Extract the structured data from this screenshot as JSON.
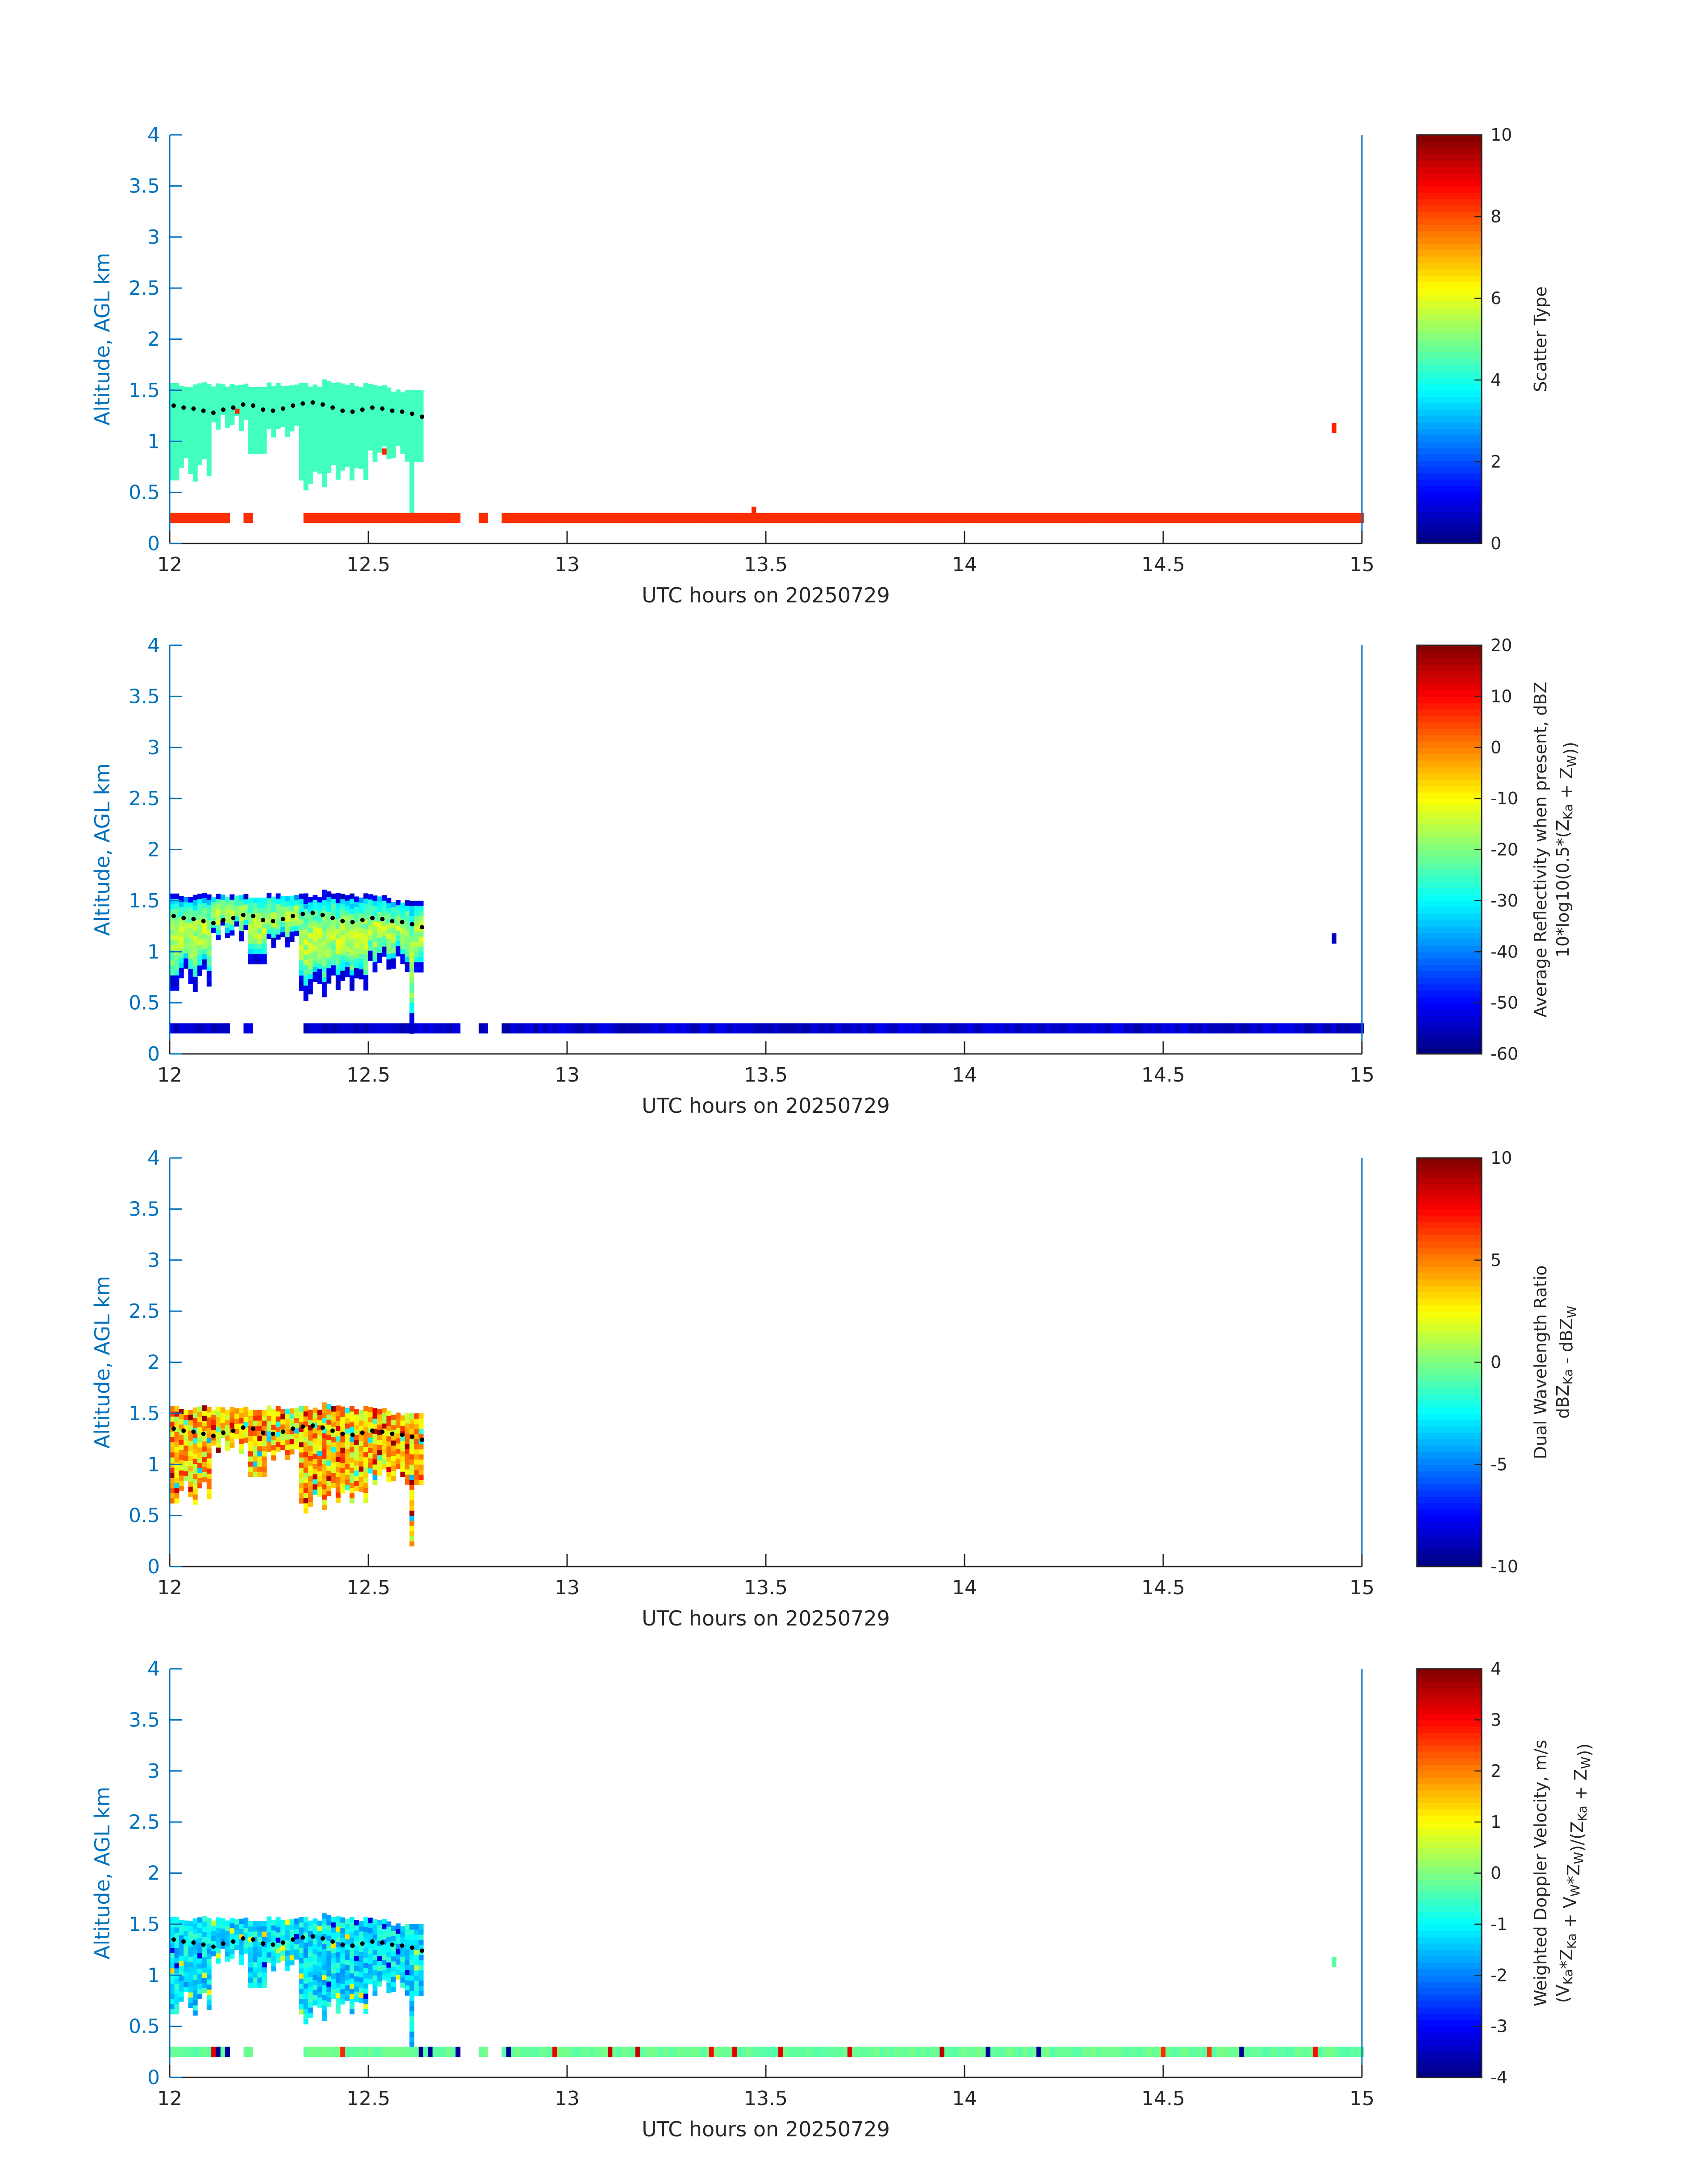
{
  "figure": {
    "colormap": "jet",
    "axis_color": "#0072bd",
    "text_color": "#262626"
  },
  "chart_data": [
    {
      "type": "heatmap",
      "xlabel": "UTC hours on 20250729",
      "ylabel": "Altitude, AGL km",
      "xlim": [
        12,
        15
      ],
      "ylim": [
        0,
        4
      ],
      "xticks": [
        "12",
        "12.5",
        "13",
        "13.5",
        "14",
        "14.5",
        "15"
      ],
      "yticks": [
        "0",
        "0.5",
        "1",
        "1.5",
        "2",
        "2.5",
        "3",
        "3.5",
        "4"
      ],
      "colorbar": {
        "label_lines": [
          "Scatter Type"
        ],
        "range": [
          0,
          10
        ],
        "ticks": [
          "0",
          "2",
          "4",
          "6",
          "8",
          "10"
        ]
      },
      "field": "scatter",
      "cloud_top_km": 1.55,
      "cloud_value": 4.4,
      "ground_value": 8.3,
      "dots_km": [
        1.35,
        1.33,
        1.32,
        1.3,
        1.28,
        1.31,
        1.33,
        1.36,
        1.35,
        1.31,
        1.3,
        1.32,
        1.35,
        1.37,
        1.38,
        1.36,
        1.33,
        1.3,
        1.29,
        1.31,
        1.33,
        1.32,
        1.3,
        1.29,
        1.27,
        1.24
      ],
      "extras": [
        {
          "x": 12.17,
          "y0": 1.27,
          "y1": 1.32,
          "v": 8.4
        },
        {
          "x": 12.54,
          "y0": 0.87,
          "y1": 0.93,
          "v": 8.4
        },
        {
          "x": 13.47,
          "y0": 0.3,
          "y1": 0.36,
          "v": 8.4
        },
        {
          "x": 14.93,
          "y0": 1.08,
          "y1": 1.18,
          "v": 8.4
        }
      ]
    },
    {
      "type": "heatmap",
      "xlabel": "UTC hours on 20250729",
      "ylabel": "Altitude, AGL km",
      "xlim": [
        12,
        15
      ],
      "ylim": [
        0,
        4
      ],
      "xticks": [
        "12",
        "12.5",
        "13",
        "13.5",
        "14",
        "14.5",
        "15"
      ],
      "yticks": [
        "0",
        "0.5",
        "1",
        "1.5",
        "2",
        "2.5",
        "3",
        "3.5",
        "4"
      ],
      "colorbar": {
        "label_lines": [
          "Average Reflectivity when present, dBZ",
          "10*log10(0.5*(Z_Ka + Z_W))"
        ],
        "range": [
          -60,
          20
        ],
        "ticks": [
          "-60",
          "-50",
          "-40",
          "-30",
          "-20",
          "-10",
          "0",
          "10",
          "20"
        ]
      },
      "field": "reflectivity",
      "cloud_top_km": 1.55,
      "ground_value": -54,
      "dots_km": [
        1.35,
        1.33,
        1.32,
        1.3,
        1.28,
        1.31,
        1.33,
        1.36,
        1.35,
        1.31,
        1.3,
        1.32,
        1.35,
        1.37,
        1.38,
        1.36,
        1.33,
        1.3,
        1.29,
        1.31,
        1.33,
        1.32,
        1.3,
        1.29,
        1.27,
        1.24
      ],
      "extras": [
        {
          "x": 14.93,
          "y0": 1.08,
          "y1": 1.18,
          "v": -55
        }
      ]
    },
    {
      "type": "heatmap",
      "xlabel": "UTC hours on 20250729",
      "ylabel": "Altitude, AGL km",
      "xlim": [
        12,
        15
      ],
      "ylim": [
        0,
        4
      ],
      "xticks": [
        "12",
        "12.5",
        "13",
        "13.5",
        "14",
        "14.5",
        "15"
      ],
      "yticks": [
        "0",
        "0.5",
        "1",
        "1.5",
        "2",
        "2.5",
        "3",
        "3.5",
        "4"
      ],
      "colorbar": {
        "label_lines": [
          "Dual Wavelength Ratio",
          "dBZ_Ka - dBZ_W"
        ],
        "range": [
          -10,
          10
        ],
        "ticks": [
          "-10",
          "-5",
          "0",
          "5",
          "10"
        ]
      },
      "field": "dwr",
      "cloud_top_km": 1.55,
      "dots_km": [
        1.35,
        1.33,
        1.32,
        1.3,
        1.28,
        1.31,
        1.33,
        1.36,
        1.35,
        1.31,
        1.3,
        1.32,
        1.35,
        1.37,
        1.38,
        1.36,
        1.33,
        1.3,
        1.29,
        1.31,
        1.33,
        1.32,
        1.3,
        1.29,
        1.27,
        1.24
      ],
      "extras": []
    },
    {
      "type": "heatmap",
      "xlabel": "UTC hours on 20250729",
      "ylabel": "Altitude, AGL km",
      "xlim": [
        12,
        15
      ],
      "ylim": [
        0,
        4
      ],
      "xticks": [
        "12",
        "12.5",
        "13",
        "13.5",
        "14",
        "14.5",
        "15"
      ],
      "yticks": [
        "0",
        "0.5",
        "1",
        "1.5",
        "2",
        "2.5",
        "3",
        "3.5",
        "4"
      ],
      "colorbar": {
        "label_lines": [
          "Weighted Doppler Velocity, m/s",
          "(V_Ka*Z_Ka + V_W*Z_W)/(Z_Ka + Z_W))"
        ],
        "range": [
          -4,
          4
        ],
        "ticks": [
          "-4",
          "-3",
          "-2",
          "-1",
          "0",
          "1",
          "2",
          "3",
          "4"
        ]
      },
      "field": "velocity",
      "cloud_top_km": 1.55,
      "ground_value": -0.2,
      "dots_km": [
        1.35,
        1.33,
        1.32,
        1.3,
        1.28,
        1.31,
        1.33,
        1.36,
        1.35,
        1.31,
        1.3,
        1.32,
        1.35,
        1.37,
        1.38,
        1.36,
        1.33,
        1.3,
        1.29,
        1.31,
        1.33,
        1.32,
        1.3,
        1.29,
        1.27,
        1.24
      ],
      "extras": [
        {
          "x": 14.93,
          "y0": 1.08,
          "y1": 1.18,
          "v": -0.3
        }
      ]
    }
  ]
}
